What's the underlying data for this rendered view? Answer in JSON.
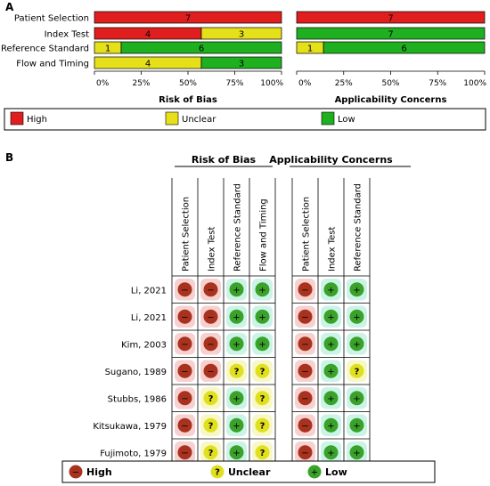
{
  "panel_a_label": "A",
  "panel_b_label": "B",
  "colors": {
    "high": "#e01e1e",
    "unclear": "#e5e019",
    "low": "#1fb01f"
  },
  "legend": {
    "high": "High",
    "unclear": "Unclear",
    "low": "Low"
  },
  "chart_data": [
    {
      "type": "bar",
      "stacked": true,
      "orientation": "horizontal",
      "title": "Risk of Bias",
      "categories": [
        "Patient Selection",
        "Index Test",
        "Reference Standard",
        "Flow and Timing"
      ],
      "series": [
        {
          "name": "High",
          "values": [
            7,
            4,
            0,
            0
          ]
        },
        {
          "name": "Unclear",
          "values": [
            0,
            3,
            1,
            4
          ]
        },
        {
          "name": "Low",
          "values": [
            0,
            0,
            6,
            3
          ]
        }
      ],
      "xticks": [
        "0%",
        "25%",
        "50%",
        "75%",
        "100%"
      ],
      "xlim": [
        0,
        100
      ]
    },
    {
      "type": "bar",
      "stacked": true,
      "orientation": "horizontal",
      "title": "Applicability Concerns",
      "categories": [
        "Patient Selection",
        "Index Test",
        "Reference Standard"
      ],
      "series": [
        {
          "name": "High",
          "values": [
            7,
            0,
            0
          ]
        },
        {
          "name": "Unclear",
          "values": [
            0,
            0,
            1
          ]
        },
        {
          "name": "Low",
          "values": [
            0,
            7,
            6
          ]
        }
      ],
      "xticks": [
        "0%",
        "25%",
        "50%",
        "75%",
        "100%"
      ],
      "xlim": [
        0,
        100
      ]
    },
    {
      "type": "table",
      "group_headers": [
        "Risk of Bias",
        "Applicability Concerns"
      ],
      "rob_columns": [
        "Patient Selection",
        "Index Test",
        "Reference Standard",
        "Flow and Timing"
      ],
      "ac_columns": [
        "Patient Selection",
        "Index Test",
        "Reference Standard"
      ],
      "rows": [
        {
          "study": "Li, 2021",
          "rob": [
            "high",
            "high",
            "low",
            "low"
          ],
          "ac": [
            "high",
            "low",
            "low"
          ]
        },
        {
          "study": "Li, 2021",
          "rob": [
            "high",
            "high",
            "low",
            "low"
          ],
          "ac": [
            "high",
            "low",
            "low"
          ]
        },
        {
          "study": "Kim, 2003",
          "rob": [
            "high",
            "high",
            "low",
            "low"
          ],
          "ac": [
            "high",
            "low",
            "low"
          ]
        },
        {
          "study": "Sugano, 1989",
          "rob": [
            "high",
            "high",
            "unclear",
            "unclear"
          ],
          "ac": [
            "high",
            "low",
            "unclear"
          ]
        },
        {
          "study": "Stubbs, 1986",
          "rob": [
            "high",
            "unclear",
            "low",
            "unclear"
          ],
          "ac": [
            "high",
            "low",
            "low"
          ]
        },
        {
          "study": "Kitsukawa, 1979",
          "rob": [
            "high",
            "unclear",
            "low",
            "unclear"
          ],
          "ac": [
            "high",
            "low",
            "low"
          ]
        },
        {
          "study": "Fujimoto, 1979",
          "rob": [
            "high",
            "unclear",
            "low",
            "unclear"
          ],
          "ac": [
            "high",
            "low",
            "low"
          ]
        }
      ],
      "symbols": {
        "high": "−",
        "unclear": "?",
        "low": "+"
      },
      "legend": {
        "high": "High",
        "unclear": "Unclear",
        "low": "Low"
      }
    }
  ]
}
